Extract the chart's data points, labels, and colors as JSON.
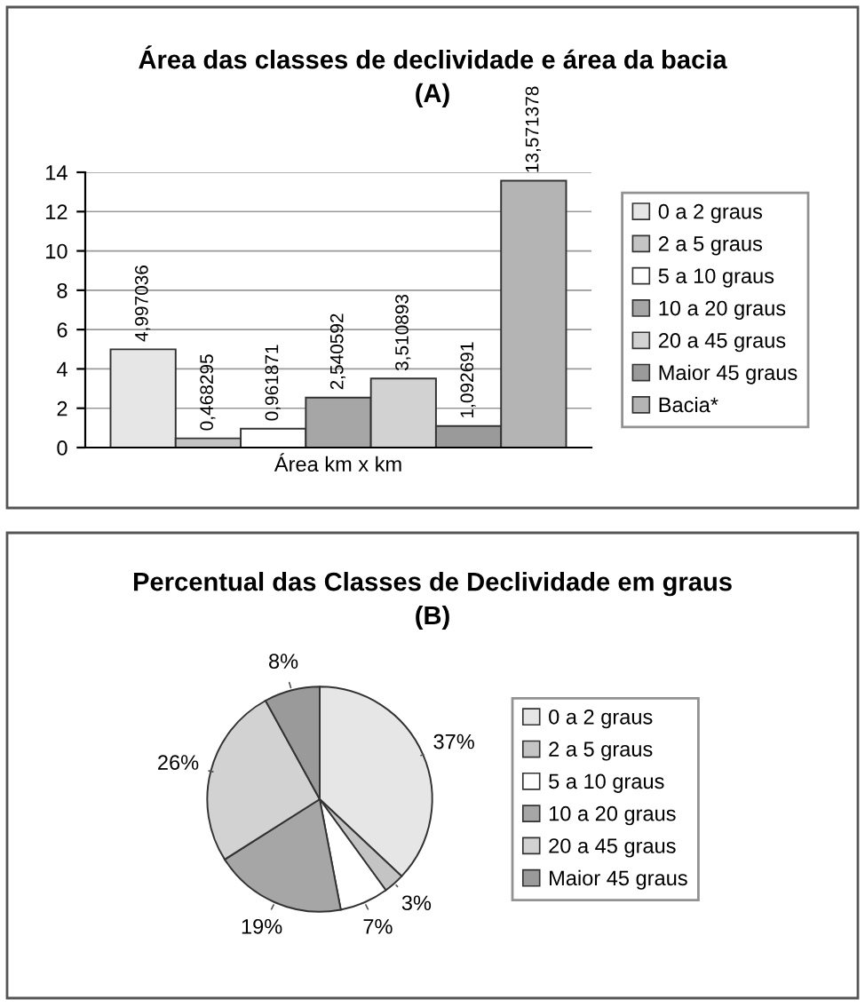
{
  "chart_data": [
    {
      "type": "bar",
      "title": "Área das classes de declividade e área da bacia\n(A)",
      "categories": [
        "Área km x km"
      ],
      "ylim": [
        0,
        14
      ],
      "yticks": [
        0,
        2,
        4,
        6,
        8,
        10,
        12,
        14
      ],
      "grid": "y",
      "legend": "right",
      "series": [
        {
          "name": "0 a 2 graus",
          "color": "#e6e6e6",
          "values": [
            4.997036
          ],
          "value_labels": [
            "4,997036"
          ]
        },
        {
          "name": "2 a 5 graus",
          "color": "#c4c4c4",
          "values": [
            0.468295
          ],
          "value_labels": [
            "0,468295"
          ]
        },
        {
          "name": "5 a 10 graus",
          "color": "#ffffff",
          "values": [
            0.961871
          ],
          "value_labels": [
            "0,961871"
          ]
        },
        {
          "name": "10 a 20 graus",
          "color": "#a6a6a6",
          "values": [
            2.540592
          ],
          "value_labels": [
            "2,540592"
          ]
        },
        {
          "name": "20 a 45 graus",
          "color": "#d2d2d2",
          "values": [
            3.510893
          ],
          "value_labels": [
            "3,510893"
          ]
        },
        {
          "name": "Maior 45 graus",
          "color": "#9a9a9a",
          "values": [
            1.092691
          ],
          "value_labels": [
            "1,092691"
          ]
        },
        {
          "name": "Bacia*",
          "color": "#b4b4b4",
          "values": [
            13.571378
          ],
          "value_labels": [
            "13,571378"
          ]
        }
      ]
    },
    {
      "type": "pie",
      "title": "Percentual das Classes de Declividade em graus\n(B)",
      "legend": "right",
      "categories": [
        "0 a 2 graus",
        "2 a 5 graus",
        "5 a 10 graus",
        "10 a 20 graus",
        "20 a 45 graus",
        "Maior 45 graus"
      ],
      "values": [
        37,
        3,
        7,
        19,
        26,
        8
      ],
      "value_labels": [
        "37%",
        "3%",
        "7%",
        "19%",
        "26%",
        "8%"
      ],
      "colors": [
        "#e6e6e6",
        "#c4c4c4",
        "#ffffff",
        "#a6a6a6",
        "#d2d2d2",
        "#9a9a9a"
      ]
    }
  ]
}
